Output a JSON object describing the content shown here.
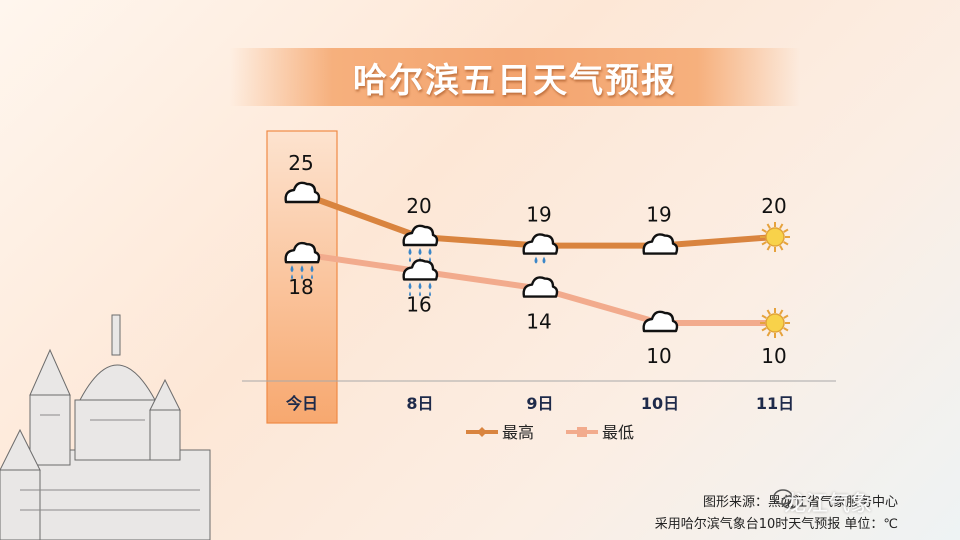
{
  "title": "哈尔滨五日天气预报",
  "footer": {
    "source": "图形来源：黑龙江省气象服务中心",
    "note": "采用哈尔滨气象台10时天气预报 单位：℃"
  },
  "watermark": "龙江气象",
  "colors": {
    "high": "#d9843f",
    "low": "#f2ab8d",
    "today_bg": "#f7a86f"
  },
  "chart_data": {
    "type": "line",
    "categories": [
      "今日",
      "8日",
      "9日",
      "10日",
      "11日"
    ],
    "series": [
      {
        "name": "最高",
        "values": [
          25,
          20,
          19,
          19,
          20
        ]
      },
      {
        "name": "最低",
        "values": [
          18,
          16,
          14,
          10,
          10
        ]
      }
    ],
    "icons_high": [
      "cloud-icon",
      "cloud-rain-icon",
      "cloud-rain-light-icon",
      "cloud-icon",
      "sun-icon"
    ],
    "icons_low": [
      "cloud-rain-icon",
      "cloud-rain-icon",
      "cloud-icon",
      "cloud-icon",
      "sun-icon"
    ],
    "highlight_category": "今日",
    "legend_position": "bottom",
    "grid": false
  }
}
